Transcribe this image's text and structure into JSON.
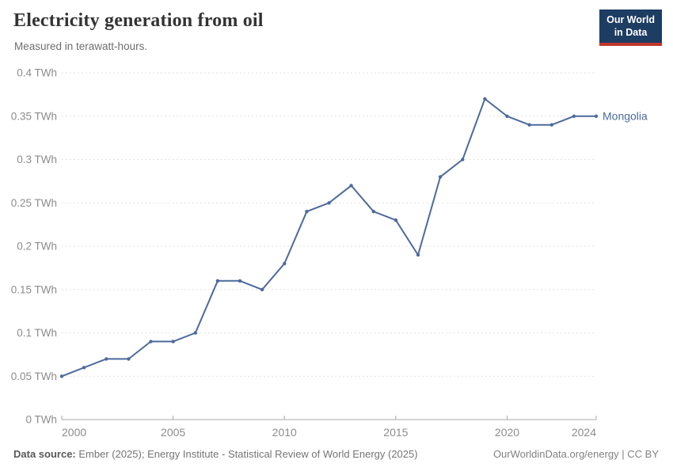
{
  "header": {
    "title": "Electricity generation from oil",
    "subtitle": "Measured in terawatt-hours."
  },
  "logo": {
    "line1": "Our World",
    "line2": "in Data",
    "bg_color": "#1d3d63",
    "accent_color": "#c0362c"
  },
  "chart_data": {
    "type": "line",
    "title": "Electricity generation from oil",
    "unit": "TWh",
    "xlabel": "",
    "ylabel": "",
    "xlim": [
      2000,
      2024
    ],
    "ylim": [
      0,
      0.4
    ],
    "grid": "horizontal-dashed",
    "legend_position": "end-of-line-label",
    "x": [
      2000,
      2001,
      2002,
      2003,
      2004,
      2005,
      2006,
      2007,
      2008,
      2009,
      2010,
      2011,
      2012,
      2013,
      2014,
      2015,
      2016,
      2017,
      2018,
      2019,
      2020,
      2021,
      2022,
      2023,
      2024
    ],
    "series": [
      {
        "name": "Mongolia",
        "color": "#4c6a9c",
        "values": [
          0.05,
          0.06,
          0.07,
          0.07,
          0.09,
          0.09,
          0.1,
          0.16,
          0.16,
          0.15,
          0.18,
          0.24,
          0.25,
          0.27,
          0.24,
          0.23,
          0.19,
          0.28,
          0.3,
          0.37,
          0.35,
          0.34,
          0.34,
          0.35,
          0.35
        ]
      }
    ],
    "y_ticks": [
      {
        "value": 0,
        "label": "0 TWh"
      },
      {
        "value": 0.05,
        "label": "0.05 TWh"
      },
      {
        "value": 0.1,
        "label": "0.1 TWh"
      },
      {
        "value": 0.15,
        "label": "0.15 TWh"
      },
      {
        "value": 0.2,
        "label": "0.2 TWh"
      },
      {
        "value": 0.25,
        "label": "0.25 TWh"
      },
      {
        "value": 0.3,
        "label": "0.3 TWh"
      },
      {
        "value": 0.35,
        "label": "0.35 TWh"
      },
      {
        "value": 0.4,
        "label": "0.4 TWh"
      }
    ],
    "x_ticks": [
      {
        "value": 2000,
        "label": "2000"
      },
      {
        "value": 2005,
        "label": "2005"
      },
      {
        "value": 2010,
        "label": "2010"
      },
      {
        "value": 2015,
        "label": "2015"
      },
      {
        "value": 2020,
        "label": "2020"
      },
      {
        "value": 2024,
        "label": "2024"
      }
    ],
    "colors": {
      "line": "#4c6a9c",
      "grid": "#e2e2e2",
      "axis": "#a8a8a8",
      "tick_label": "#8c8c8c"
    }
  },
  "footer": {
    "source_label": "Data source:",
    "source_text": " Ember (2025); Energy Institute - Statistical Review of World Energy (2025)",
    "right_text": "OurWorldinData.org/energy | CC BY"
  }
}
